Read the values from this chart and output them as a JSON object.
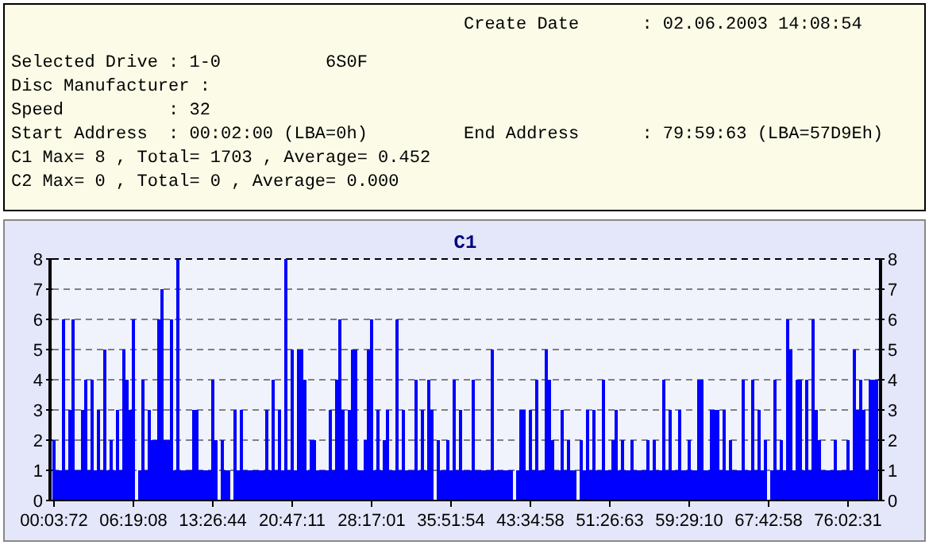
{
  "chart_data": [
    {
      "type": "other",
      "annotations": [
        "Create Date      : 02.06.2003 14:08:54",
        "Selected Drive : 1-0          6S0F",
        "Disc Manufacturer :",
        "Speed          : 32",
        "Start Address  : 00:02:00 (LBA=0h)",
        "End Address      : 79:59:63 (LBA=57D9Eh)",
        "C1 Max= 8 , Total= 1703 , Average= 0.452",
        "C2 Max= 0 , Total= 0 , Average= 0.000"
      ]
    },
    {
      "type": "bar",
      "title": "C1",
      "color": "#0000ff",
      "ylim": [
        0,
        8
      ],
      "yticks": [
        0,
        1,
        2,
        3,
        4,
        5,
        6,
        7,
        8
      ],
      "y2lim": [
        0,
        8
      ],
      "y2ticks": [
        0,
        1,
        2,
        3,
        4,
        5,
        6,
        7,
        8
      ],
      "grid": "y",
      "categories": [
        "00:03:72",
        null,
        null,
        null,
        null,
        null,
        null,
        null,
        null,
        null,
        null,
        null,
        null,
        null,
        null,
        null,
        null,
        null,
        null,
        null,
        null,
        null,
        null,
        null,
        null,
        "06:19:08",
        null,
        null,
        null,
        null,
        null,
        null,
        null,
        null,
        null,
        null,
        null,
        null,
        null,
        null,
        null,
        null,
        null,
        null,
        null,
        null,
        null,
        null,
        null,
        null,
        "13:26:44",
        null,
        null,
        null,
        null,
        null,
        null,
        null,
        null,
        null,
        null,
        null,
        null,
        null,
        null,
        null,
        null,
        null,
        null,
        null,
        null,
        null,
        null,
        null,
        null,
        "20:47:11",
        null,
        null,
        null,
        null,
        null,
        null,
        null,
        null,
        null,
        null,
        null,
        null,
        null,
        null,
        null,
        null,
        null,
        null,
        null,
        null,
        null,
        null,
        null,
        null,
        "28:17:01",
        null,
        null,
        null,
        null,
        null,
        null,
        null,
        null,
        null,
        null,
        null,
        null,
        null,
        null,
        null,
        null,
        null,
        null,
        null,
        null,
        null,
        null,
        null,
        null,
        "35:51:54",
        null,
        null,
        null,
        null,
        null,
        null,
        null,
        null,
        null,
        null,
        null,
        null,
        null,
        null,
        null,
        null,
        null,
        null,
        null,
        null,
        null,
        null,
        null,
        null,
        "43:34:58",
        null,
        null,
        null,
        null,
        null,
        null,
        null,
        null,
        null,
        null,
        null,
        null,
        null,
        null,
        null,
        null,
        null,
        null,
        null,
        null,
        null,
        null,
        null,
        null,
        "51:26:63",
        null,
        null,
        null,
        null,
        null,
        null,
        null,
        null,
        null,
        null,
        null,
        null,
        null,
        null,
        null,
        null,
        null,
        null,
        null,
        null,
        null,
        null,
        null,
        null,
        "59:29:10",
        null,
        null,
        null,
        null,
        null,
        null,
        null,
        null,
        null,
        null,
        null,
        null,
        null,
        null,
        null,
        null,
        null,
        null,
        null,
        null,
        null,
        null,
        null,
        null,
        "67:42:58",
        null,
        null,
        null,
        null,
        null,
        null,
        null,
        null,
        null,
        null,
        null,
        null,
        null,
        null,
        null,
        null,
        null,
        null,
        null,
        null,
        null,
        null,
        null,
        null,
        "76:02:31",
        null,
        null,
        null,
        null,
        null,
        null,
        null,
        null,
        null
      ],
      "values": [
        2,
        1,
        1,
        6,
        1,
        3,
        6,
        1,
        1,
        3,
        4,
        1,
        4,
        1,
        3,
        1,
        5,
        1,
        2,
        1,
        3,
        1,
        5,
        4,
        3,
        6,
        0,
        1,
        4,
        1,
        3,
        2,
        2,
        6,
        7,
        2,
        2,
        6,
        1,
        8,
        1,
        1,
        1,
        1,
        3,
        3,
        1,
        1,
        1,
        1,
        4,
        2,
        0,
        2,
        1,
        1,
        0,
        3,
        1,
        3,
        1,
        1,
        1,
        1,
        1,
        1,
        1,
        3,
        1,
        4,
        1,
        3,
        1,
        8,
        1,
        5,
        1,
        5,
        5,
        4,
        1,
        2,
        2,
        1,
        1,
        1,
        1,
        3,
        1,
        4,
        6,
        3,
        1,
        3,
        5,
        5,
        1,
        1,
        2,
        5,
        6,
        1,
        3,
        1,
        2,
        3,
        1,
        1,
        6,
        1,
        3,
        1,
        1,
        1,
        4,
        1,
        3,
        1,
        4,
        3,
        0,
        2,
        1,
        1,
        2,
        1,
        4,
        1,
        3,
        1,
        1,
        1,
        4,
        1,
        1,
        1,
        1,
        1,
        5,
        1,
        1,
        1,
        1,
        1,
        1,
        0,
        1,
        3,
        3,
        1,
        3,
        1,
        4,
        1,
        1,
        5,
        4,
        2,
        1,
        1,
        3,
        1,
        2,
        1,
        1,
        0,
        2,
        1,
        3,
        1,
        3,
        1,
        1,
        4,
        1,
        1,
        2,
        3,
        1,
        2,
        1,
        1,
        2,
        1,
        1,
        1,
        1,
        2,
        1,
        2,
        1,
        1,
        4,
        1,
        3,
        1,
        1,
        3,
        1,
        1,
        2,
        1,
        1,
        4,
        4,
        1,
        1,
        3,
        3,
        3,
        1,
        3,
        1,
        2,
        1,
        1,
        1,
        4,
        1,
        1,
        4,
        1,
        3,
        1,
        2,
        0,
        1,
        4,
        1,
        2,
        1,
        6,
        5,
        1,
        4,
        4,
        1,
        4,
        1,
        6,
        3,
        2,
        1,
        1,
        1,
        1,
        2,
        1,
        1,
        1,
        2,
        1,
        5,
        3,
        4,
        3,
        1,
        4,
        4,
        4
      ]
    }
  ]
}
